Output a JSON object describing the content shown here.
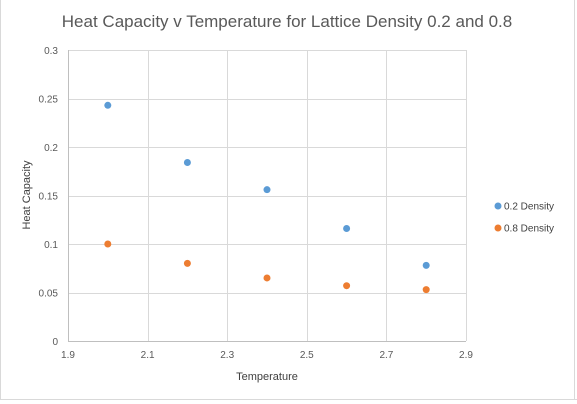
{
  "chart_data": {
    "type": "scatter",
    "title": "Heat Capacity v Temperature for Lattice Density 0.2 and 0.8",
    "xlabel": "Temperature",
    "ylabel": "Heat Capacity",
    "xlim": [
      1.9,
      2.9
    ],
    "ylim": [
      0,
      0.3
    ],
    "xticks": [
      1.9,
      2.1,
      2.3,
      2.5,
      2.7,
      2.9
    ],
    "xtick_labels": [
      "1.9",
      "2.1",
      "2.3",
      "2.5",
      "2.7",
      "2.9"
    ],
    "yticks": [
      0,
      0.05,
      0.1,
      0.15,
      0.2,
      0.25,
      0.3
    ],
    "ytick_labels": [
      "0",
      "0.05",
      "0.1",
      "0.15",
      "0.2",
      "0.25",
      "0.3"
    ],
    "grid": true,
    "legend_position": "right",
    "series": [
      {
        "name": "0.2 Density",
        "color": "#5b9bd5",
        "x": [
          2.0,
          2.2,
          2.4,
          2.6,
          2.8
        ],
        "y": [
          0.243,
          0.184,
          0.156,
          0.116,
          0.078
        ]
      },
      {
        "name": "0.8 Density",
        "color": "#ed7d31",
        "x": [
          2.0,
          2.2,
          2.4,
          2.6,
          2.8
        ],
        "y": [
          0.1,
          0.08,
          0.065,
          0.057,
          0.053
        ]
      }
    ]
  }
}
